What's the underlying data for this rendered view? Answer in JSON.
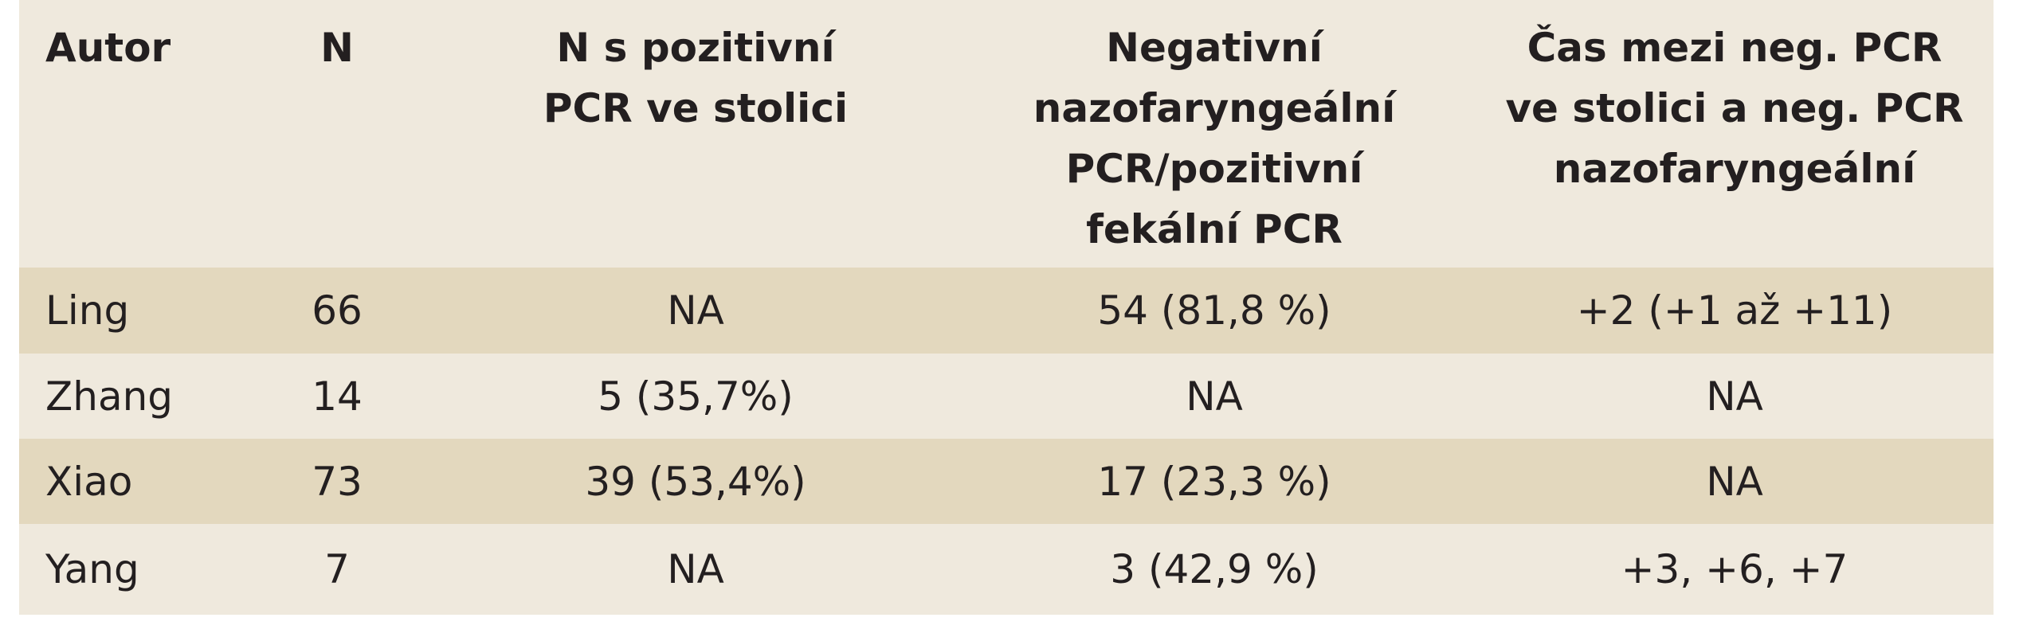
{
  "table": {
    "header": [
      [
        "Autor"
      ],
      [
        "N"
      ],
      [
        "N s pozitivní",
        "PCR ve stolici"
      ],
      [
        "Negativní",
        "nazofaryngeální",
        "PCR/pozitivní",
        "fekální PCR"
      ],
      [
        "Čas mezi neg. PCR",
        "ve stolici a neg. PCR",
        "nazofaryngeální"
      ]
    ],
    "rows": [
      [
        "Ling",
        "66",
        "NA",
        "54 (81,8 %)",
        "+2 (+1 až +11)"
      ],
      [
        "Zhang",
        "14",
        "5 (35,7%)",
        "NA",
        "NA"
      ],
      [
        "Xiao",
        "73",
        "39 (53,4%)",
        "17 (23,3 %)",
        "NA"
      ],
      [
        "Yang",
        "7",
        "NA",
        "3 (42,9 %)",
        "+3, +6, +7"
      ]
    ]
  }
}
